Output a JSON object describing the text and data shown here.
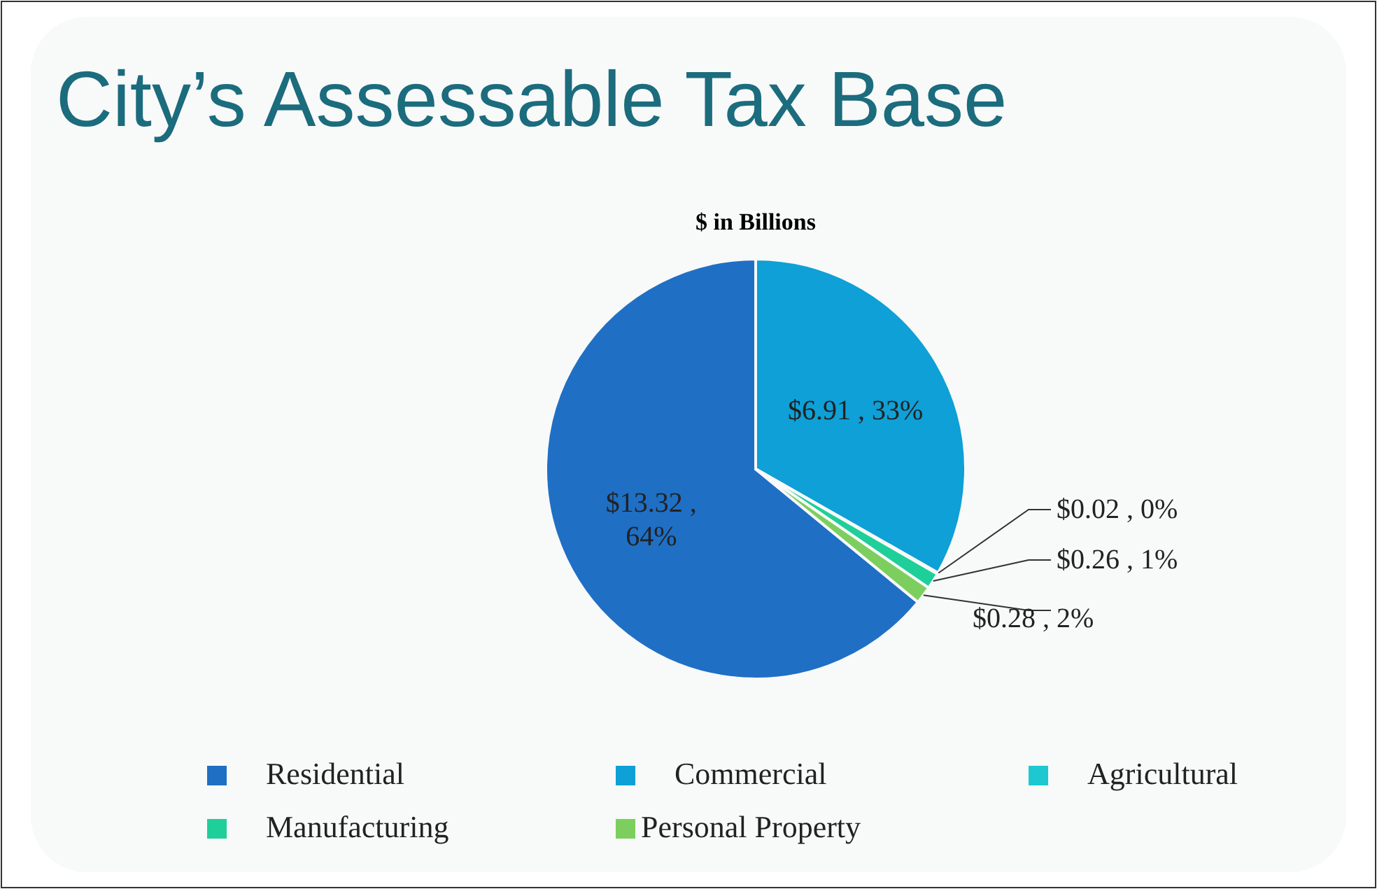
{
  "chart_data": {
    "type": "pie",
    "title": "City’s Assessable Tax Base",
    "subtitle": "$ in Billions",
    "categories": [
      "Residential",
      "Commercial",
      "Agricultural",
      "Manufacturing",
      "Personal Property"
    ],
    "values": [
      13.32,
      6.91,
      0.02,
      0.26,
      0.28
    ],
    "colors": [
      "#1f6fc5",
      "#0ea0d6",
      "#1ec8d0",
      "#1fcf9a",
      "#7ccf5e"
    ],
    "value_labels": [
      "$13.32 , 64%",
      "$6.91 , 33%",
      "$0.02 , 0%",
      "$0.26 , 1%",
      "$0.28 , 2%"
    ],
    "legend": "bottom"
  }
}
